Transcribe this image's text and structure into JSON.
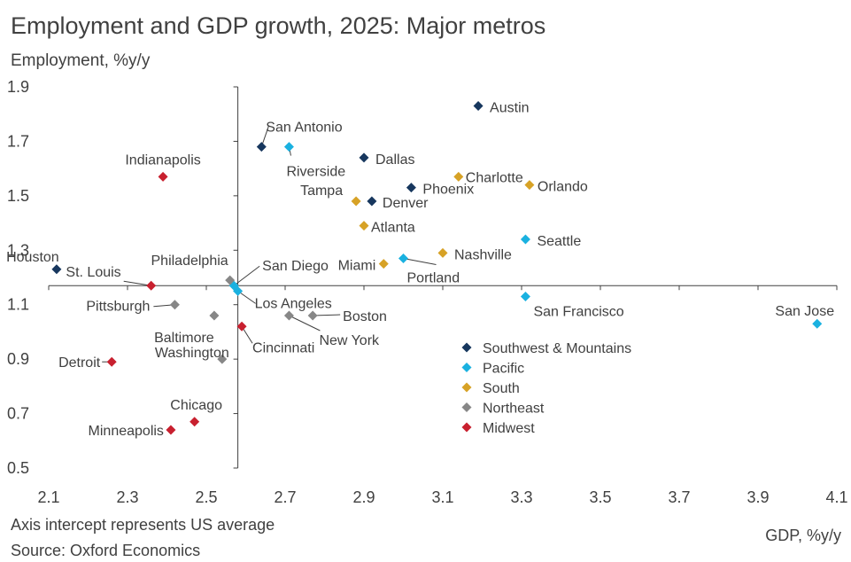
{
  "title": "Employment and GDP growth, 2025: Major metros",
  "notes": {
    "intercept": "Axis intercept represents US average",
    "source": "Source: Oxford Economics"
  },
  "chart_data": {
    "type": "scatter",
    "title": "Employment and GDP growth, 2025: Major metros",
    "xlabel": "GDP, %y/y",
    "ylabel": "Employment, %y/y",
    "xlim": [
      2.1,
      4.1
    ],
    "ylim": [
      0.5,
      1.9
    ],
    "xticks": [
      "2.1",
      "2.3",
      "2.5",
      "2.7",
      "2.9",
      "3.1",
      "3.3",
      "3.5",
      "3.7",
      "3.9",
      "4.1"
    ],
    "yticks": [
      "0.5",
      "0.7",
      "0.9",
      "1.1",
      "1.3",
      "1.5",
      "1.7",
      "1.9"
    ],
    "x_axis_crosses_y_at": 1.17,
    "y_axis_crosses_x_at": 2.58,
    "grid": false,
    "legend_position": "bottom-right",
    "series": [
      {
        "name": "Southwest & Mountains",
        "color": "#17375e",
        "points": [
          {
            "label": "Austin",
            "x": 3.19,
            "y": 1.83
          },
          {
            "label": "San Antonio",
            "x": 2.64,
            "y": 1.68
          },
          {
            "label": "Dallas",
            "x": 2.9,
            "y": 1.64
          },
          {
            "label": "Phoenix",
            "x": 3.02,
            "y": 1.53
          },
          {
            "label": "Denver",
            "x": 2.92,
            "y": 1.48
          },
          {
            "label": "Houston",
            "x": 2.12,
            "y": 1.23
          }
        ]
      },
      {
        "name": "Pacific",
        "color": "#1ab1e0",
        "points": [
          {
            "label": "Riverside",
            "x": 2.71,
            "y": 1.68
          },
          {
            "label": "Seattle",
            "x": 3.31,
            "y": 1.34
          },
          {
            "label": "Portland",
            "x": 3.0,
            "y": 1.27
          },
          {
            "label": "San Diego",
            "x": 2.57,
            "y": 1.17
          },
          {
            "label": "Los Angeles",
            "x": 2.58,
            "y": 1.15
          },
          {
            "label": "San Francisco",
            "x": 3.31,
            "y": 1.13
          },
          {
            "label": "San Jose",
            "x": 4.05,
            "y": 1.03
          }
        ]
      },
      {
        "name": "South",
        "color": "#d7a226",
        "points": [
          {
            "label": "Charlotte",
            "x": 3.14,
            "y": 1.57
          },
          {
            "label": "Orlando",
            "x": 3.32,
            "y": 1.54
          },
          {
            "label": "Tampa",
            "x": 2.88,
            "y": 1.48
          },
          {
            "label": "Atlanta",
            "x": 2.9,
            "y": 1.39
          },
          {
            "label": "Nashville",
            "x": 3.1,
            "y": 1.29
          },
          {
            "label": "Miami",
            "x": 2.95,
            "y": 1.25
          }
        ]
      },
      {
        "name": "Northeast",
        "color": "#878787",
        "points": [
          {
            "label": "Philadelphia",
            "x": 2.56,
            "y": 1.19
          },
          {
            "label": "Pittsburgh",
            "x": 2.42,
            "y": 1.1
          },
          {
            "label": "Baltimore",
            "x": 2.52,
            "y": 1.06
          },
          {
            "label": "Boston",
            "x": 2.77,
            "y": 1.06
          },
          {
            "label": "New York",
            "x": 2.71,
            "y": 1.06
          },
          {
            "label": "Washington",
            "x": 2.54,
            "y": 0.9
          }
        ]
      },
      {
        "name": "Midwest",
        "color": "#c8202f",
        "points": [
          {
            "label": "Indianapolis",
            "x": 2.39,
            "y": 1.57
          },
          {
            "label": "St. Louis",
            "x": 2.36,
            "y": 1.17
          },
          {
            "label": "Cincinnati",
            "x": 2.59,
            "y": 1.02
          },
          {
            "label": "Detroit",
            "x": 2.26,
            "y": 0.89
          },
          {
            "label": "Chicago",
            "x": 2.47,
            "y": 0.67
          },
          {
            "label": "Minneapolis",
            "x": 2.41,
            "y": 0.64
          }
        ]
      }
    ]
  }
}
